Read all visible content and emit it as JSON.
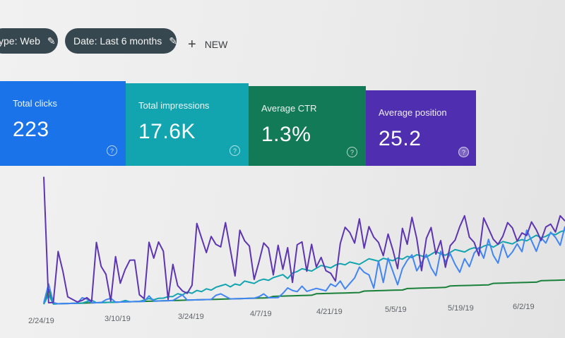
{
  "filters": {
    "type_label": "ype: Web",
    "date_label": "Date: Last 6 months",
    "new_label": "NEW"
  },
  "metrics": [
    {
      "label": "Total clicks",
      "value": "223",
      "color": "#1a73e8"
    },
    {
      "label": "Total impressions",
      "value": "17.6K",
      "color": "#12a4af"
    },
    {
      "label": "Average CTR",
      "value": "1.3%",
      "color": "#137a57"
    },
    {
      "label": "Average position",
      "value": "25.2",
      "color": "#4f2fb0"
    }
  ],
  "chart_data": {
    "type": "line",
    "x_labels": [
      "2/24/19",
      "3/10/19",
      "3/24/19",
      "4/7/19",
      "4/21/19",
      "5/5/19",
      "5/19/19",
      "6/2/19"
    ],
    "series": [
      {
        "color": "#5e35b1",
        "values": [
          96,
          2,
          2,
          40,
          25,
          6,
          4,
          2,
          3,
          5,
          2,
          46,
          28,
          22,
          2,
          35,
          15,
          25,
          32,
          32,
          6,
          3,
          45,
          33,
          45,
          38,
          2,
          28,
          12,
          8,
          6,
          12,
          58,
          47,
          36,
          48,
          42,
          40,
          58,
          38,
          18,
          52,
          44,
          40,
          15,
          28,
          42,
          38,
          18,
          40,
          22,
          38,
          12,
          40,
          42,
          20,
          40,
          23,
          30,
          20,
          18,
          12,
          40,
          52,
          48,
          40,
          58,
          36,
          52,
          44,
          40,
          30,
          46,
          34,
          20,
          50,
          38,
          58,
          42,
          18,
          42,
          50,
          30,
          40,
          20,
          36,
          40,
          50,
          58,
          42,
          38,
          28,
          56,
          48,
          40,
          36,
          42,
          52,
          48,
          38,
          44,
          42,
          52,
          46,
          38,
          48,
          50,
          44,
          56,
          52
        ]
      },
      {
        "color": "#4285f4",
        "values": [
          2,
          16,
          2,
          1,
          1,
          1,
          1,
          1,
          5,
          4,
          1,
          1,
          1,
          3,
          4,
          1,
          1,
          1,
          1,
          1,
          1,
          1,
          5,
          1,
          1,
          1,
          1,
          1,
          3,
          5,
          1,
          1,
          1,
          1,
          1,
          1,
          4,
          5,
          3,
          1,
          1,
          1,
          1,
          1,
          1,
          2,
          4,
          1,
          1,
          1,
          4,
          8,
          6,
          5,
          9,
          5,
          6,
          7,
          6,
          5,
          10,
          8,
          12,
          6,
          10,
          14,
          22,
          18,
          16,
          6,
          26,
          10,
          28,
          18,
          8,
          20,
          26,
          30,
          18,
          24,
          30,
          20,
          14,
          32,
          24,
          30,
          22,
          16,
          26,
          20,
          30,
          34,
          26,
          40,
          28,
          22,
          36,
          26,
          30,
          36,
          30,
          46,
          38,
          30,
          40,
          36,
          44,
          40,
          34,
          48
        ]
      },
      {
        "color": "#12a4af",
        "values": [
          1,
          8,
          1,
          1,
          1,
          1,
          1,
          1,
          1,
          2,
          3,
          1,
          1,
          1,
          1,
          1,
          1,
          2,
          1,
          1,
          1,
          2,
          3,
          2,
          3,
          3,
          4,
          4,
          6,
          5,
          7,
          6,
          8,
          7,
          9,
          8,
          10,
          11,
          12,
          10,
          12,
          11,
          14,
          13,
          12,
          14,
          15,
          14,
          16,
          17,
          18,
          15,
          19,
          20,
          22,
          21,
          20,
          22,
          24,
          23,
          22,
          24,
          25,
          24,
          26,
          25,
          24,
          26,
          28,
          27,
          26,
          28,
          27,
          26,
          28,
          27,
          29,
          28,
          30,
          29,
          28,
          30,
          32,
          30,
          29,
          31,
          33,
          32,
          31,
          33,
          34,
          33,
          35,
          36,
          34,
          36,
          38,
          37,
          36,
          38,
          39,
          38,
          40,
          42,
          40,
          41,
          43,
          42,
          44,
          45
        ]
      },
      {
        "color": "#188038",
        "values": [
          1,
          12,
          1,
          1,
          1,
          1,
          1,
          1,
          1,
          1,
          1,
          1,
          1,
          1,
          1,
          1,
          1,
          1,
          1,
          1,
          1,
          1,
          1,
          1,
          1,
          1,
          1,
          1,
          1,
          1,
          1,
          1,
          1,
          1,
          1,
          1,
          1,
          1,
          1,
          1,
          1,
          1,
          1,
          1,
          1,
          1,
          1,
          1,
          2,
          2,
          2,
          2,
          2,
          2,
          2,
          2,
          2,
          3,
          3,
          3,
          3,
          3,
          3,
          3,
          3,
          3,
          3,
          4,
          4,
          4,
          4,
          4,
          4,
          4,
          4,
          4,
          5,
          5,
          5,
          5,
          5,
          5,
          5,
          5,
          5,
          6,
          6,
          6,
          6,
          6,
          6,
          6,
          6,
          6,
          7,
          7,
          7,
          7,
          7,
          7,
          7,
          7,
          7,
          7,
          8,
          8,
          8,
          8,
          8,
          8
        ]
      }
    ]
  }
}
